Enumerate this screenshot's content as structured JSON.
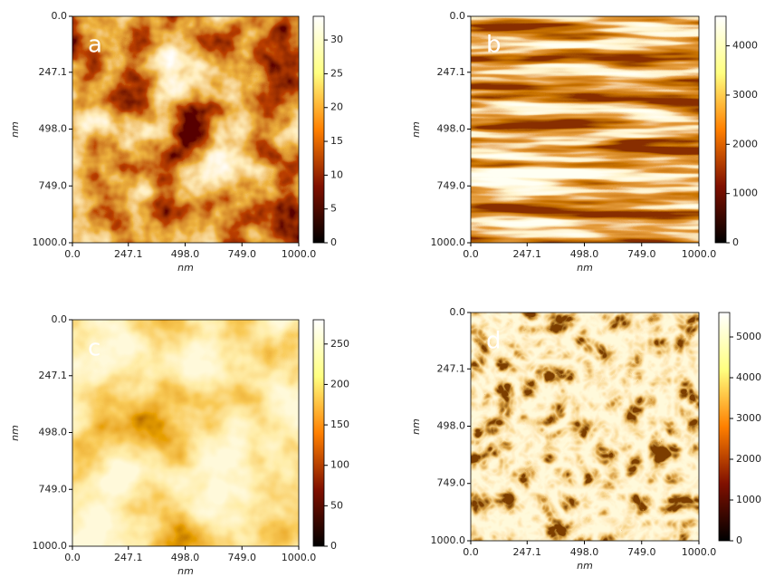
{
  "chart_data": [
    {
      "type": "heatmap",
      "panel_label": "a",
      "xlabel": "nm",
      "ylabel": "nm",
      "xlim": [
        0,
        1000
      ],
      "xticks": [
        {
          "value": 0,
          "label": "0.0"
        },
        247.1,
        {
          "value": 498,
          "label": "498.0"
        },
        {
          "value": 749,
          "label": "749.0"
        },
        {
          "value": 1000,
          "label": "1000.0"
        }
      ],
      "ylim": [
        1000,
        0
      ],
      "yticks": [
        {
          "value": 0,
          "label": "0.0"
        },
        247.1,
        {
          "value": 498,
          "label": "498.0"
        },
        {
          "value": 749,
          "label": "749.0"
        },
        {
          "value": 1000,
          "label": "1000.0"
        }
      ],
      "clim": [
        0,
        33.5
      ],
      "cticks": [
        0,
        5,
        10,
        15,
        20,
        25,
        30
      ],
      "colormap": [
        "#000000",
        "#801000",
        "#ff8000",
        "#ffff80",
        "#ffffff"
      ]
    },
    {
      "type": "heatmap",
      "panel_label": "b",
      "xlabel": "nm",
      "ylabel": "nm",
      "xlim": [
        0,
        1000
      ],
      "xticks": [
        {
          "value": 0,
          "label": "0.0"
        },
        247.1,
        {
          "value": 498,
          "label": "498.0"
        },
        {
          "value": 749,
          "label": "749.0"
        },
        {
          "value": 1000,
          "label": "1000.0"
        }
      ],
      "ylim": [
        1000,
        0
      ],
      "yticks": [
        {
          "value": 0,
          "label": "0.0"
        },
        247.1,
        {
          "value": 498,
          "label": "498.0"
        },
        {
          "value": 749,
          "label": "749.0"
        },
        {
          "value": 1000,
          "label": "1000.0"
        }
      ],
      "clim": [
        0,
        4600
      ],
      "cticks": [
        0,
        1000,
        2000,
        3000,
        4000
      ],
      "colormap": [
        "#000000",
        "#801000",
        "#ff8000",
        "#ffff80",
        "#ffffff"
      ]
    },
    {
      "type": "heatmap",
      "panel_label": "c",
      "xlabel": "nm",
      "ylabel": "nm",
      "xlim": [
        0,
        1000
      ],
      "xticks": [
        {
          "value": 0,
          "label": "0.0"
        },
        247.1,
        {
          "value": 498,
          "label": "498.0"
        },
        {
          "value": 749,
          "label": "749.0"
        },
        {
          "value": 1000,
          "label": "1000.0"
        }
      ],
      "ylim": [
        1000,
        0
      ],
      "yticks": [
        {
          "value": 0,
          "label": "0.0"
        },
        247.1,
        {
          "value": 498,
          "label": "498.0"
        },
        {
          "value": 749,
          "label": "749.0"
        },
        {
          "value": 1000,
          "label": "1000.0"
        }
      ],
      "clim": [
        0,
        280
      ],
      "cticks": [
        0,
        50,
        100,
        150,
        200,
        250
      ],
      "colormap": [
        "#000000",
        "#801000",
        "#ff8000",
        "#ffff80",
        "#ffffff"
      ]
    },
    {
      "type": "heatmap",
      "panel_label": "d",
      "xlabel": "nm",
      "ylabel": "nm",
      "xlim": [
        0,
        1000
      ],
      "xticks": [
        {
          "value": 0,
          "label": "0.0"
        },
        247.1,
        {
          "value": 498,
          "label": "498.0"
        },
        {
          "value": 749,
          "label": "749.0"
        },
        {
          "value": 1000,
          "label": "1000.0"
        }
      ],
      "ylim": [
        1000,
        0
      ],
      "yticks": [
        {
          "value": 0,
          "label": "0.0"
        },
        247.1,
        {
          "value": 498,
          "label": "498.0"
        },
        {
          "value": 749,
          "label": "749.0"
        },
        {
          "value": 1000,
          "label": "1000.0"
        }
      ],
      "clim": [
        0,
        5600
      ],
      "cticks": [
        0,
        1000,
        2000,
        3000,
        4000,
        5000
      ],
      "colormap": [
        "#000000",
        "#801000",
        "#ff8000",
        "#ffff80",
        "#ffffff"
      ]
    }
  ]
}
